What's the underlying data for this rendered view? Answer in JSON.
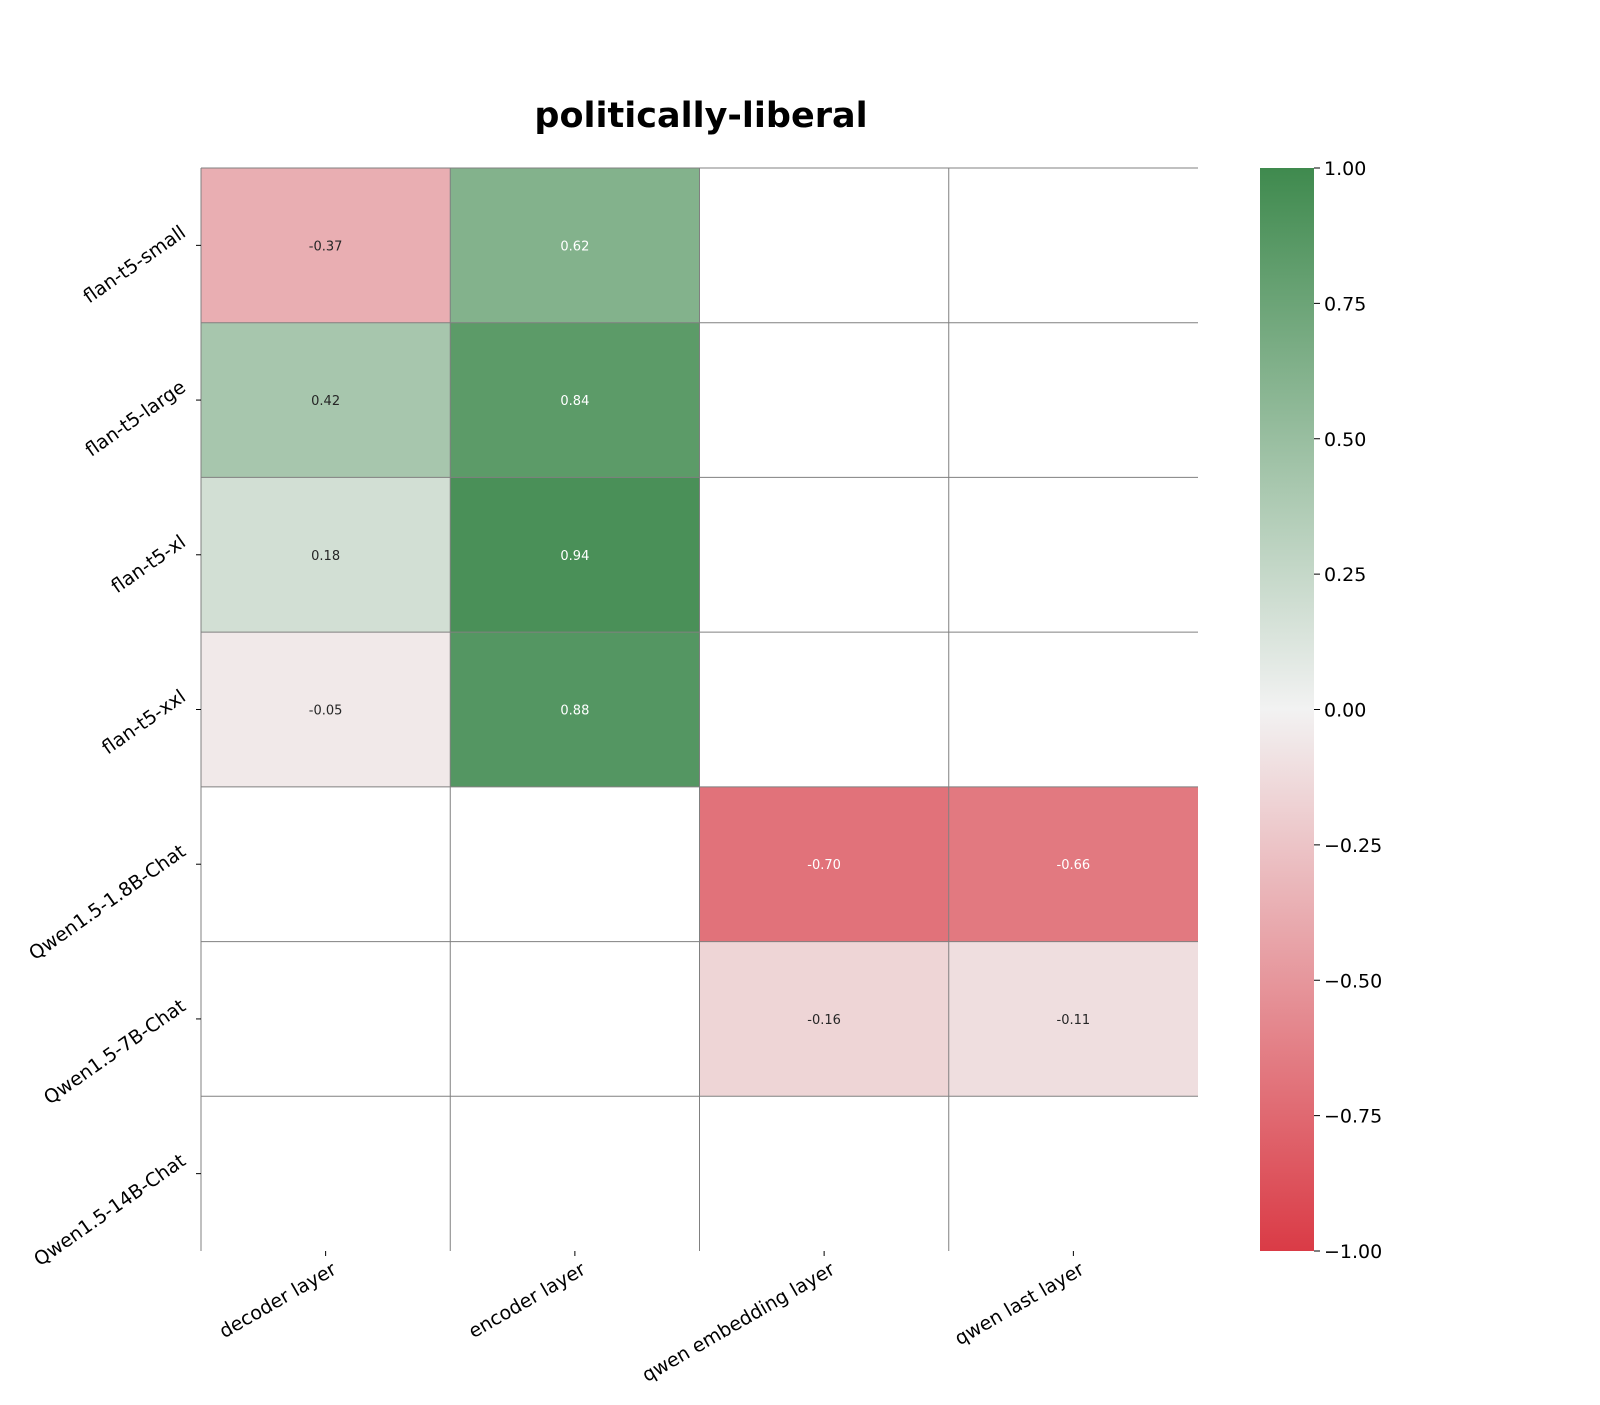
{
  "chart_data": {
    "type": "heatmap",
    "title": "politically-liberal",
    "rows": [
      "flan-t5-small",
      "flan-t5-large",
      "flan-t5-xl",
      "flan-t5-xxl",
      "Qwen1.5-1.8B-Chat",
      "Qwen1.5-7B-Chat",
      "Qwen1.5-14B-Chat"
    ],
    "columns": [
      "decoder layer",
      "encoder layer",
      "qwen embedding layer",
      "qwen last layer"
    ],
    "values": [
      [
        -0.37,
        0.62,
        null,
        null
      ],
      [
        0.42,
        0.84,
        null,
        null
      ],
      [
        0.18,
        0.94,
        null,
        null
      ],
      [
        -0.05,
        0.88,
        null,
        null
      ],
      [
        null,
        null,
        -0.7,
        -0.66
      ],
      [
        null,
        null,
        -0.16,
        -0.11
      ],
      [
        null,
        null,
        null,
        null
      ]
    ],
    "value_labels": [
      [
        "-0.37",
        "0.62",
        "",
        ""
      ],
      [
        "0.42",
        "0.84",
        "",
        ""
      ],
      [
        "0.18",
        "0.94",
        "",
        ""
      ],
      [
        "-0.05",
        "0.88",
        "",
        ""
      ],
      [
        "",
        "",
        "-0.70",
        "-0.66"
      ],
      [
        "",
        "",
        "-0.16",
        "-0.11"
      ],
      [
        "",
        "",
        "",
        ""
      ]
    ],
    "colorbar": {
      "min": -1.0,
      "max": 1.0,
      "ticks": [
        "1.00",
        "0.75",
        "0.50",
        "0.25",
        "0.00",
        "−0.25",
        "−0.50",
        "−0.75",
        "−1.00"
      ],
      "tick_values": [
        1.0,
        0.75,
        0.5,
        0.25,
        0.0,
        -0.25,
        -0.5,
        -0.75,
        -1.0
      ],
      "colors": {
        "low": "#da3b46",
        "mid": "#f2f2f2",
        "high": "#3f8a4e"
      }
    },
    "grid": true,
    "grid_color": "#808080"
  }
}
